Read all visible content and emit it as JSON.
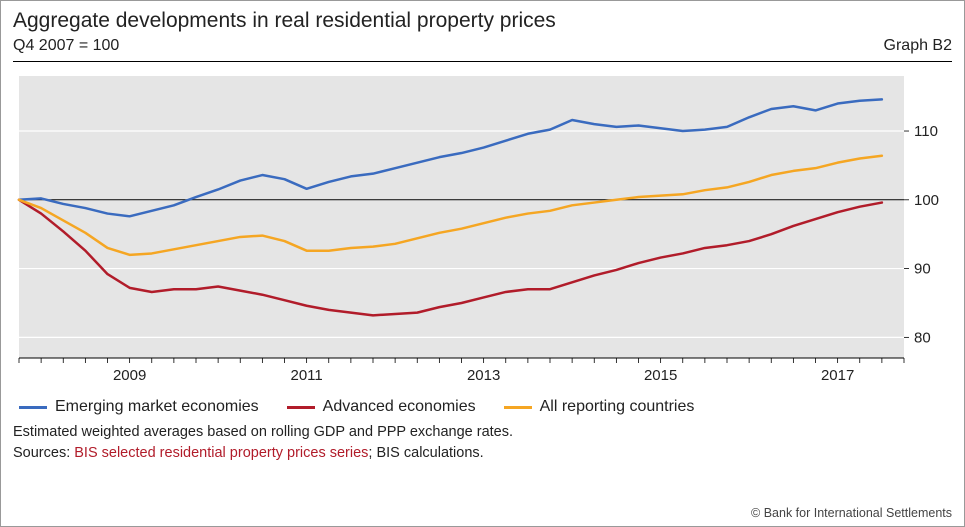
{
  "header": {
    "title": "Aggregate developments in real residential property prices",
    "subtitle_left": "Q4 2007 = 100",
    "subtitle_right": "Graph B2"
  },
  "chart": {
    "type": "line",
    "background_color": "#e5e5e5",
    "grid_color": "#ffffff",
    "axis_text_color": "#222222",
    "reference_line": {
      "y": 100,
      "color": "#000000",
      "width": 1
    },
    "x": {
      "domain": [
        2007.75,
        2017.75
      ],
      "ticks": [
        2009,
        2011,
        2013,
        2015,
        2017
      ],
      "minor_tick_step": 0.25,
      "label_fontsize": 15
    },
    "y": {
      "domain": [
        77,
        118
      ],
      "gridlines": [
        80,
        90,
        100,
        110
      ],
      "tick_labels": [
        80,
        90,
        100,
        110
      ],
      "label_fontsize": 15,
      "side": "right"
    },
    "line_width": 2.5,
    "series": [
      {
        "name": "Emerging market economies",
        "color": "#3a6bbf",
        "x": [
          2007.75,
          2008,
          2008.25,
          2008.5,
          2008.75,
          2009,
          2009.25,
          2009.5,
          2009.75,
          2010,
          2010.25,
          2010.5,
          2010.75,
          2011,
          2011.25,
          2011.5,
          2011.75,
          2012,
          2012.25,
          2012.5,
          2012.75,
          2013,
          2013.25,
          2013.5,
          2013.75,
          2014,
          2014.25,
          2014.5,
          2014.75,
          2015,
          2015.25,
          2015.5,
          2015.75,
          2016,
          2016.25,
          2016.5,
          2016.75,
          2017,
          2017.25,
          2017.5
        ],
        "y": [
          100,
          100.2,
          99.4,
          98.8,
          98.0,
          97.6,
          98.4,
          99.2,
          100.4,
          101.5,
          102.8,
          103.6,
          103.0,
          101.6,
          102.6,
          103.4,
          103.8,
          104.6,
          105.4,
          106.2,
          106.8,
          107.6,
          108.6,
          109.6,
          110.2,
          111.6,
          111.0,
          110.6,
          110.8,
          110.4,
          110.0,
          110.2,
          110.6,
          112.0,
          113.2,
          113.6,
          113.0,
          114.0,
          114.4,
          114.6
        ]
      },
      {
        "name": "Advanced economies",
        "color": "#b11c2a",
        "x": [
          2007.75,
          2008,
          2008.25,
          2008.5,
          2008.75,
          2009,
          2009.25,
          2009.5,
          2009.75,
          2010,
          2010.25,
          2010.5,
          2010.75,
          2011,
          2011.25,
          2011.5,
          2011.75,
          2012,
          2012.25,
          2012.5,
          2012.75,
          2013,
          2013.25,
          2013.5,
          2013.75,
          2014,
          2014.25,
          2014.5,
          2014.75,
          2015,
          2015.25,
          2015.5,
          2015.75,
          2016,
          2016.25,
          2016.5,
          2016.75,
          2017,
          2017.25,
          2017.5
        ],
        "y": [
          100,
          98.0,
          95.4,
          92.6,
          89.2,
          87.2,
          86.6,
          87.0,
          87.0,
          87.4,
          86.8,
          86.2,
          85.4,
          84.6,
          84.0,
          83.6,
          83.2,
          83.4,
          83.6,
          84.4,
          85.0,
          85.8,
          86.6,
          87.0,
          87.0,
          88.0,
          89.0,
          89.8,
          90.8,
          91.6,
          92.2,
          93.0,
          93.4,
          94.0,
          95.0,
          96.2,
          97.2,
          98.2,
          99.0,
          99.6
        ]
      },
      {
        "name": "All reporting countries",
        "color": "#f5a623",
        "x": [
          2007.75,
          2008,
          2008.25,
          2008.5,
          2008.75,
          2009,
          2009.25,
          2009.5,
          2009.75,
          2010,
          2010.25,
          2010.5,
          2010.75,
          2011,
          2011.25,
          2011.5,
          2011.75,
          2012,
          2012.25,
          2012.5,
          2012.75,
          2013,
          2013.25,
          2013.5,
          2013.75,
          2014,
          2014.25,
          2014.5,
          2014.75,
          2015,
          2015.25,
          2015.5,
          2015.75,
          2016,
          2016.25,
          2016.5,
          2016.75,
          2017,
          2017.25,
          2017.5
        ],
        "y": [
          100,
          98.8,
          97.0,
          95.2,
          93.0,
          92.0,
          92.2,
          92.8,
          93.4,
          94.0,
          94.6,
          94.8,
          94.0,
          92.6,
          92.6,
          93.0,
          93.2,
          93.6,
          94.4,
          95.2,
          95.8,
          96.6,
          97.4,
          98.0,
          98.4,
          99.2,
          99.6,
          100.0,
          100.4,
          100.6,
          100.8,
          101.4,
          101.8,
          102.6,
          103.6,
          104.2,
          104.6,
          105.4,
          106.0,
          106.4
        ]
      }
    ],
    "legend": {
      "items": [
        {
          "label": "Emerging market economies",
          "color": "#3a6bbf"
        },
        {
          "label": "Advanced economies",
          "color": "#b11c2a"
        },
        {
          "label": "All reporting countries",
          "color": "#f5a623"
        }
      ],
      "fontsize": 16
    }
  },
  "footnotes": {
    "line1": "Estimated weighted averages based on rolling GDP and PPP exchange rates.",
    "line2_prefix": "Sources: ",
    "line2_link": "BIS selected residential property prices series",
    "line2_suffix": "; BIS calculations."
  },
  "copyright": "© Bank for International Settlements"
}
